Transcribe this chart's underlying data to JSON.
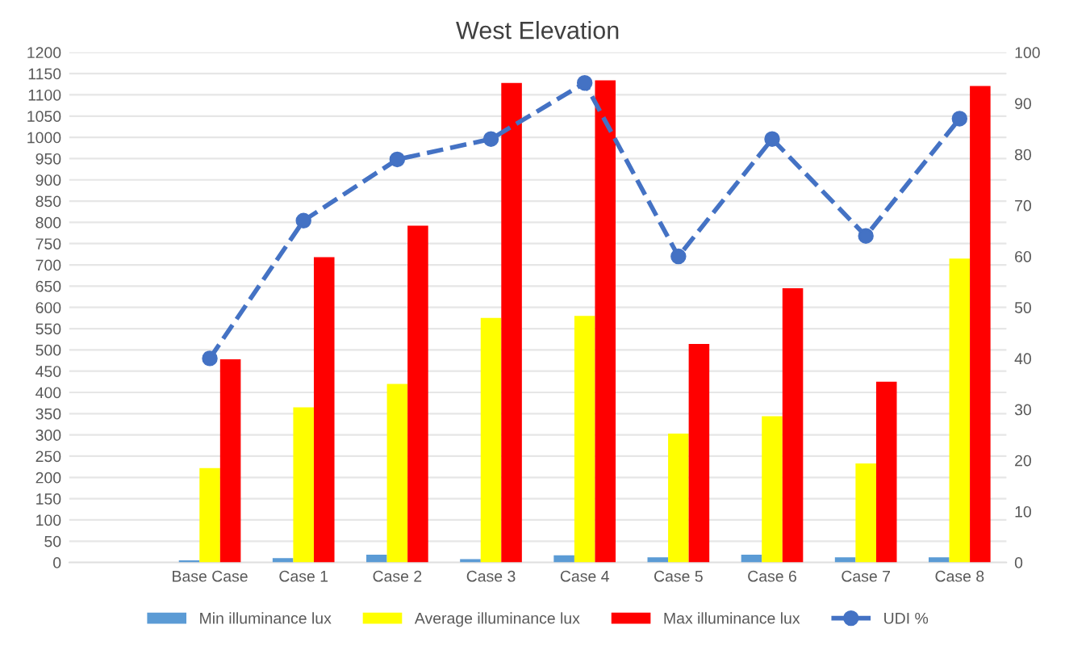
{
  "chart_data": {
    "type": "bar",
    "title": "West Elevation",
    "categories": [
      null,
      "Base Case",
      "Case 1",
      "Case 2",
      "Case 3",
      "Case 4",
      "Case 5",
      "Case 6",
      "Case 7",
      "Case 8"
    ],
    "series": [
      {
        "name": "Min illuminance lux",
        "color": "#5b9bd5",
        "values": [
          null,
          5,
          10,
          18,
          8,
          17,
          12,
          18,
          12,
          12
        ]
      },
      {
        "name": "Average illuminance lux",
        "color": "#ffff00",
        "values": [
          null,
          222,
          365,
          420,
          575,
          580,
          303,
          344,
          233,
          715
        ]
      },
      {
        "name": "Max illuminance lux",
        "color": "#ff0000",
        "values": [
          null,
          478,
          718,
          792,
          1128,
          1134,
          514,
          645,
          425,
          1121
        ]
      },
      {
        "name": "UDI %",
        "type": "line",
        "axis": "y2",
        "color": "#4472c4",
        "marker": "circle",
        "line_style": "dashed",
        "values": [
          null,
          40,
          67,
          79,
          83,
          94,
          60,
          83,
          64,
          87
        ]
      }
    ],
    "ylim": [
      0,
      1200
    ],
    "yticks": [
      0,
      50,
      100,
      150,
      200,
      250,
      300,
      350,
      400,
      450,
      500,
      550,
      600,
      650,
      700,
      750,
      800,
      850,
      900,
      950,
      1000,
      1050,
      1100,
      1150,
      1200
    ],
    "y2lim": [
      0,
      100
    ],
    "y2ticks": [
      0,
      10,
      20,
      30,
      40,
      50,
      60,
      70,
      80,
      90,
      100
    ],
    "grid": "y",
    "legend": "bottom"
  }
}
